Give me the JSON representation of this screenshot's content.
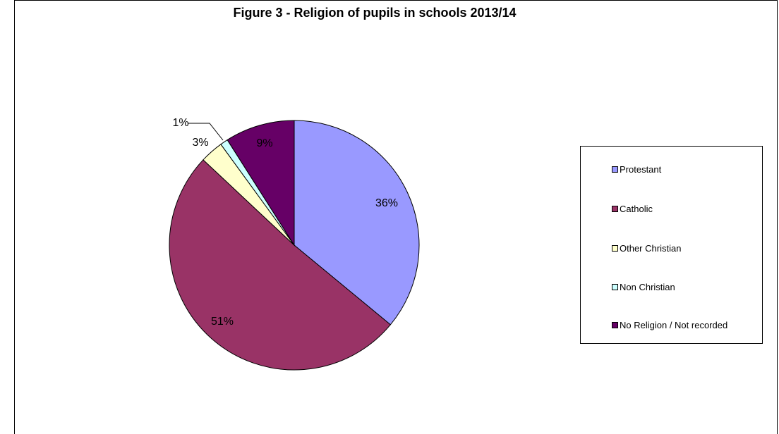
{
  "chart_data": {
    "type": "pie",
    "title": "Figure 3 - Religion of pupils in schools 2013/14",
    "categories": [
      "Protestant",
      "Catholic",
      "Other Christian",
      "Non Christian",
      "No Religion / Not recorded"
    ],
    "values": [
      36,
      51,
      3,
      1,
      9
    ],
    "data_labels": [
      "36%",
      "51%",
      "3%",
      "1%",
      "9%"
    ],
    "colors": [
      "#9999ff",
      "#993366",
      "#ffffcc",
      "#ccffff",
      "#660066"
    ],
    "legend": {
      "position": "right",
      "entries": [
        "Protestant",
        "Catholic",
        "Other Christian",
        "Non Christian",
        "No Religion / Not recorded"
      ]
    },
    "start_angle_deg": 0,
    "direction": "clockwise"
  }
}
